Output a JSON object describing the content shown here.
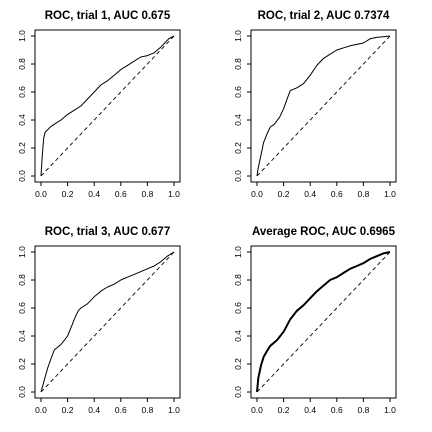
{
  "chart_data": [
    {
      "type": "line",
      "title": "ROC, trial 1, AUC 0.675",
      "xlim": [
        0,
        1
      ],
      "ylim": [
        0,
        1
      ],
      "x_ticks": [
        "0.0",
        "0.2",
        "0.4",
        "0.6",
        "0.8",
        "1.0"
      ],
      "y_ticks": [
        "0.0",
        "0.2",
        "0.4",
        "0.6",
        "0.8",
        "1.0"
      ],
      "grid": false,
      "reference_line": "diagonal-dashed",
      "series": [
        {
          "x": [
            0,
            0.01,
            0.02,
            0.03,
            0.05,
            0.07,
            0.1,
            0.15,
            0.2,
            0.25,
            0.3,
            0.35,
            0.4,
            0.45,
            0.5,
            0.55,
            0.6,
            0.65,
            0.7,
            0.75,
            0.8,
            0.85,
            0.9,
            0.93,
            0.96,
            1.0
          ],
          "y": [
            0,
            0.15,
            0.27,
            0.31,
            0.33,
            0.35,
            0.37,
            0.4,
            0.44,
            0.47,
            0.5,
            0.55,
            0.6,
            0.65,
            0.68,
            0.72,
            0.76,
            0.79,
            0.82,
            0.85,
            0.86,
            0.88,
            0.92,
            0.95,
            0.98,
            1.0
          ]
        }
      ]
    },
    {
      "type": "line",
      "title": "ROC, trial 2, AUC 0.7374",
      "xlim": [
        0,
        1
      ],
      "ylim": [
        0,
        1
      ],
      "x_ticks": [
        "0.0",
        "0.2",
        "0.4",
        "0.6",
        "0.8",
        "1.0"
      ],
      "y_ticks": [
        "0.0",
        "0.2",
        "0.4",
        "0.6",
        "0.8",
        "1.0"
      ],
      "grid": false,
      "reference_line": "diagonal-dashed",
      "series": [
        {
          "x": [
            0,
            0.01,
            0.03,
            0.05,
            0.08,
            0.1,
            0.13,
            0.17,
            0.2,
            0.23,
            0.25,
            0.3,
            0.35,
            0.4,
            0.45,
            0.5,
            0.55,
            0.6,
            0.7,
            0.8,
            0.85,
            0.9,
            1.0
          ],
          "y": [
            0,
            0.06,
            0.15,
            0.24,
            0.31,
            0.35,
            0.37,
            0.42,
            0.48,
            0.56,
            0.61,
            0.63,
            0.66,
            0.72,
            0.79,
            0.84,
            0.87,
            0.9,
            0.93,
            0.95,
            0.98,
            0.99,
            1.0
          ]
        }
      ]
    },
    {
      "type": "line",
      "title": "ROC, trial 3, AUC 0.677",
      "xlim": [
        0,
        1
      ],
      "ylim": [
        0,
        1
      ],
      "x_ticks": [
        "0.0",
        "0.2",
        "0.4",
        "0.6",
        "0.8",
        "1.0"
      ],
      "y_ticks": [
        "0.0",
        "0.2",
        "0.4",
        "0.6",
        "0.8",
        "1.0"
      ],
      "grid": false,
      "reference_line": "diagonal-dashed",
      "series": [
        {
          "x": [
            0,
            0.02,
            0.05,
            0.08,
            0.1,
            0.15,
            0.2,
            0.23,
            0.25,
            0.28,
            0.3,
            0.35,
            0.4,
            0.45,
            0.5,
            0.55,
            0.6,
            0.7,
            0.8,
            0.85,
            0.9,
            0.95,
            1.0
          ],
          "y": [
            0,
            0.07,
            0.17,
            0.25,
            0.3,
            0.34,
            0.4,
            0.47,
            0.52,
            0.58,
            0.6,
            0.63,
            0.68,
            0.72,
            0.75,
            0.77,
            0.8,
            0.84,
            0.88,
            0.9,
            0.93,
            0.97,
            1.0
          ]
        }
      ]
    },
    {
      "type": "line",
      "title": "Average ROC, AUC 0.6965",
      "xlim": [
        0,
        1
      ],
      "ylim": [
        0,
        1
      ],
      "x_ticks": [
        "0.0",
        "0.2",
        "0.4",
        "0.6",
        "0.8",
        "1.0"
      ],
      "y_ticks": [
        "0.0",
        "0.2",
        "0.4",
        "0.6",
        "0.8",
        "1.0"
      ],
      "grid": false,
      "reference_line": "diagonal-dashed",
      "series": [
        {
          "x": [
            0,
            0.01,
            0.03,
            0.05,
            0.08,
            0.1,
            0.15,
            0.2,
            0.25,
            0.3,
            0.35,
            0.4,
            0.45,
            0.5,
            0.55,
            0.6,
            0.65,
            0.7,
            0.75,
            0.8,
            0.85,
            0.9,
            0.95,
            1.0
          ],
          "y": [
            0,
            0.1,
            0.19,
            0.25,
            0.3,
            0.33,
            0.37,
            0.43,
            0.52,
            0.58,
            0.62,
            0.67,
            0.72,
            0.76,
            0.8,
            0.82,
            0.85,
            0.88,
            0.9,
            0.92,
            0.95,
            0.97,
            0.99,
            1.0
          ]
        }
      ]
    }
  ]
}
